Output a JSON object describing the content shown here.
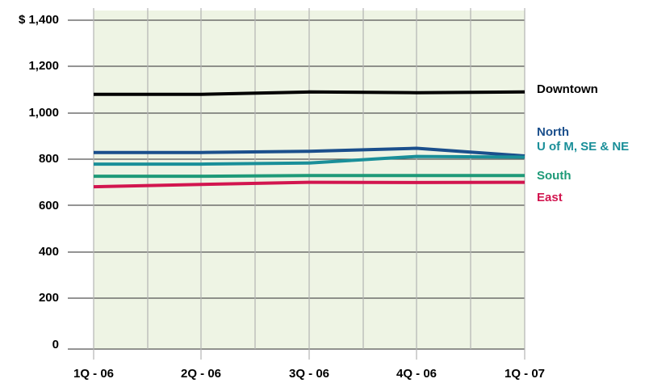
{
  "chart_data": {
    "type": "line",
    "title": "",
    "xlabel": "",
    "ylabel": "",
    "categories": [
      "1Q - 06",
      "2Q - 06",
      "3Q - 06",
      "4Q - 06",
      "1Q - 07"
    ],
    "y_tick_labels": [
      "0",
      "200",
      "400",
      "600",
      "800",
      "1,000",
      "1,200",
      "$ 1,400"
    ],
    "ylim": [
      0,
      1400
    ],
    "grid": true,
    "legend": "inline-right",
    "colors": {
      "plot_background": "#eef4e4",
      "grid": "#b3b3b3"
    },
    "series": [
      {
        "name": "Downtown",
        "color": "#000000",
        "values": [
          1075,
          1075,
          1085,
          1082,
          1085
        ]
      },
      {
        "name": "North",
        "color": "#1b4f8c",
        "values": [
          825,
          825,
          830,
          843,
          810
        ]
      },
      {
        "name": "U of M, SE & NE",
        "color": "#1a8f99",
        "values": [
          775,
          775,
          780,
          808,
          805
        ]
      },
      {
        "name": "South",
        "color": "#1e9a78",
        "values": [
          723,
          723,
          726,
          726,
          726
        ]
      },
      {
        "name": "East",
        "color": "#d2154f",
        "values": [
          678,
          688,
          697,
          696,
          697
        ]
      }
    ]
  }
}
